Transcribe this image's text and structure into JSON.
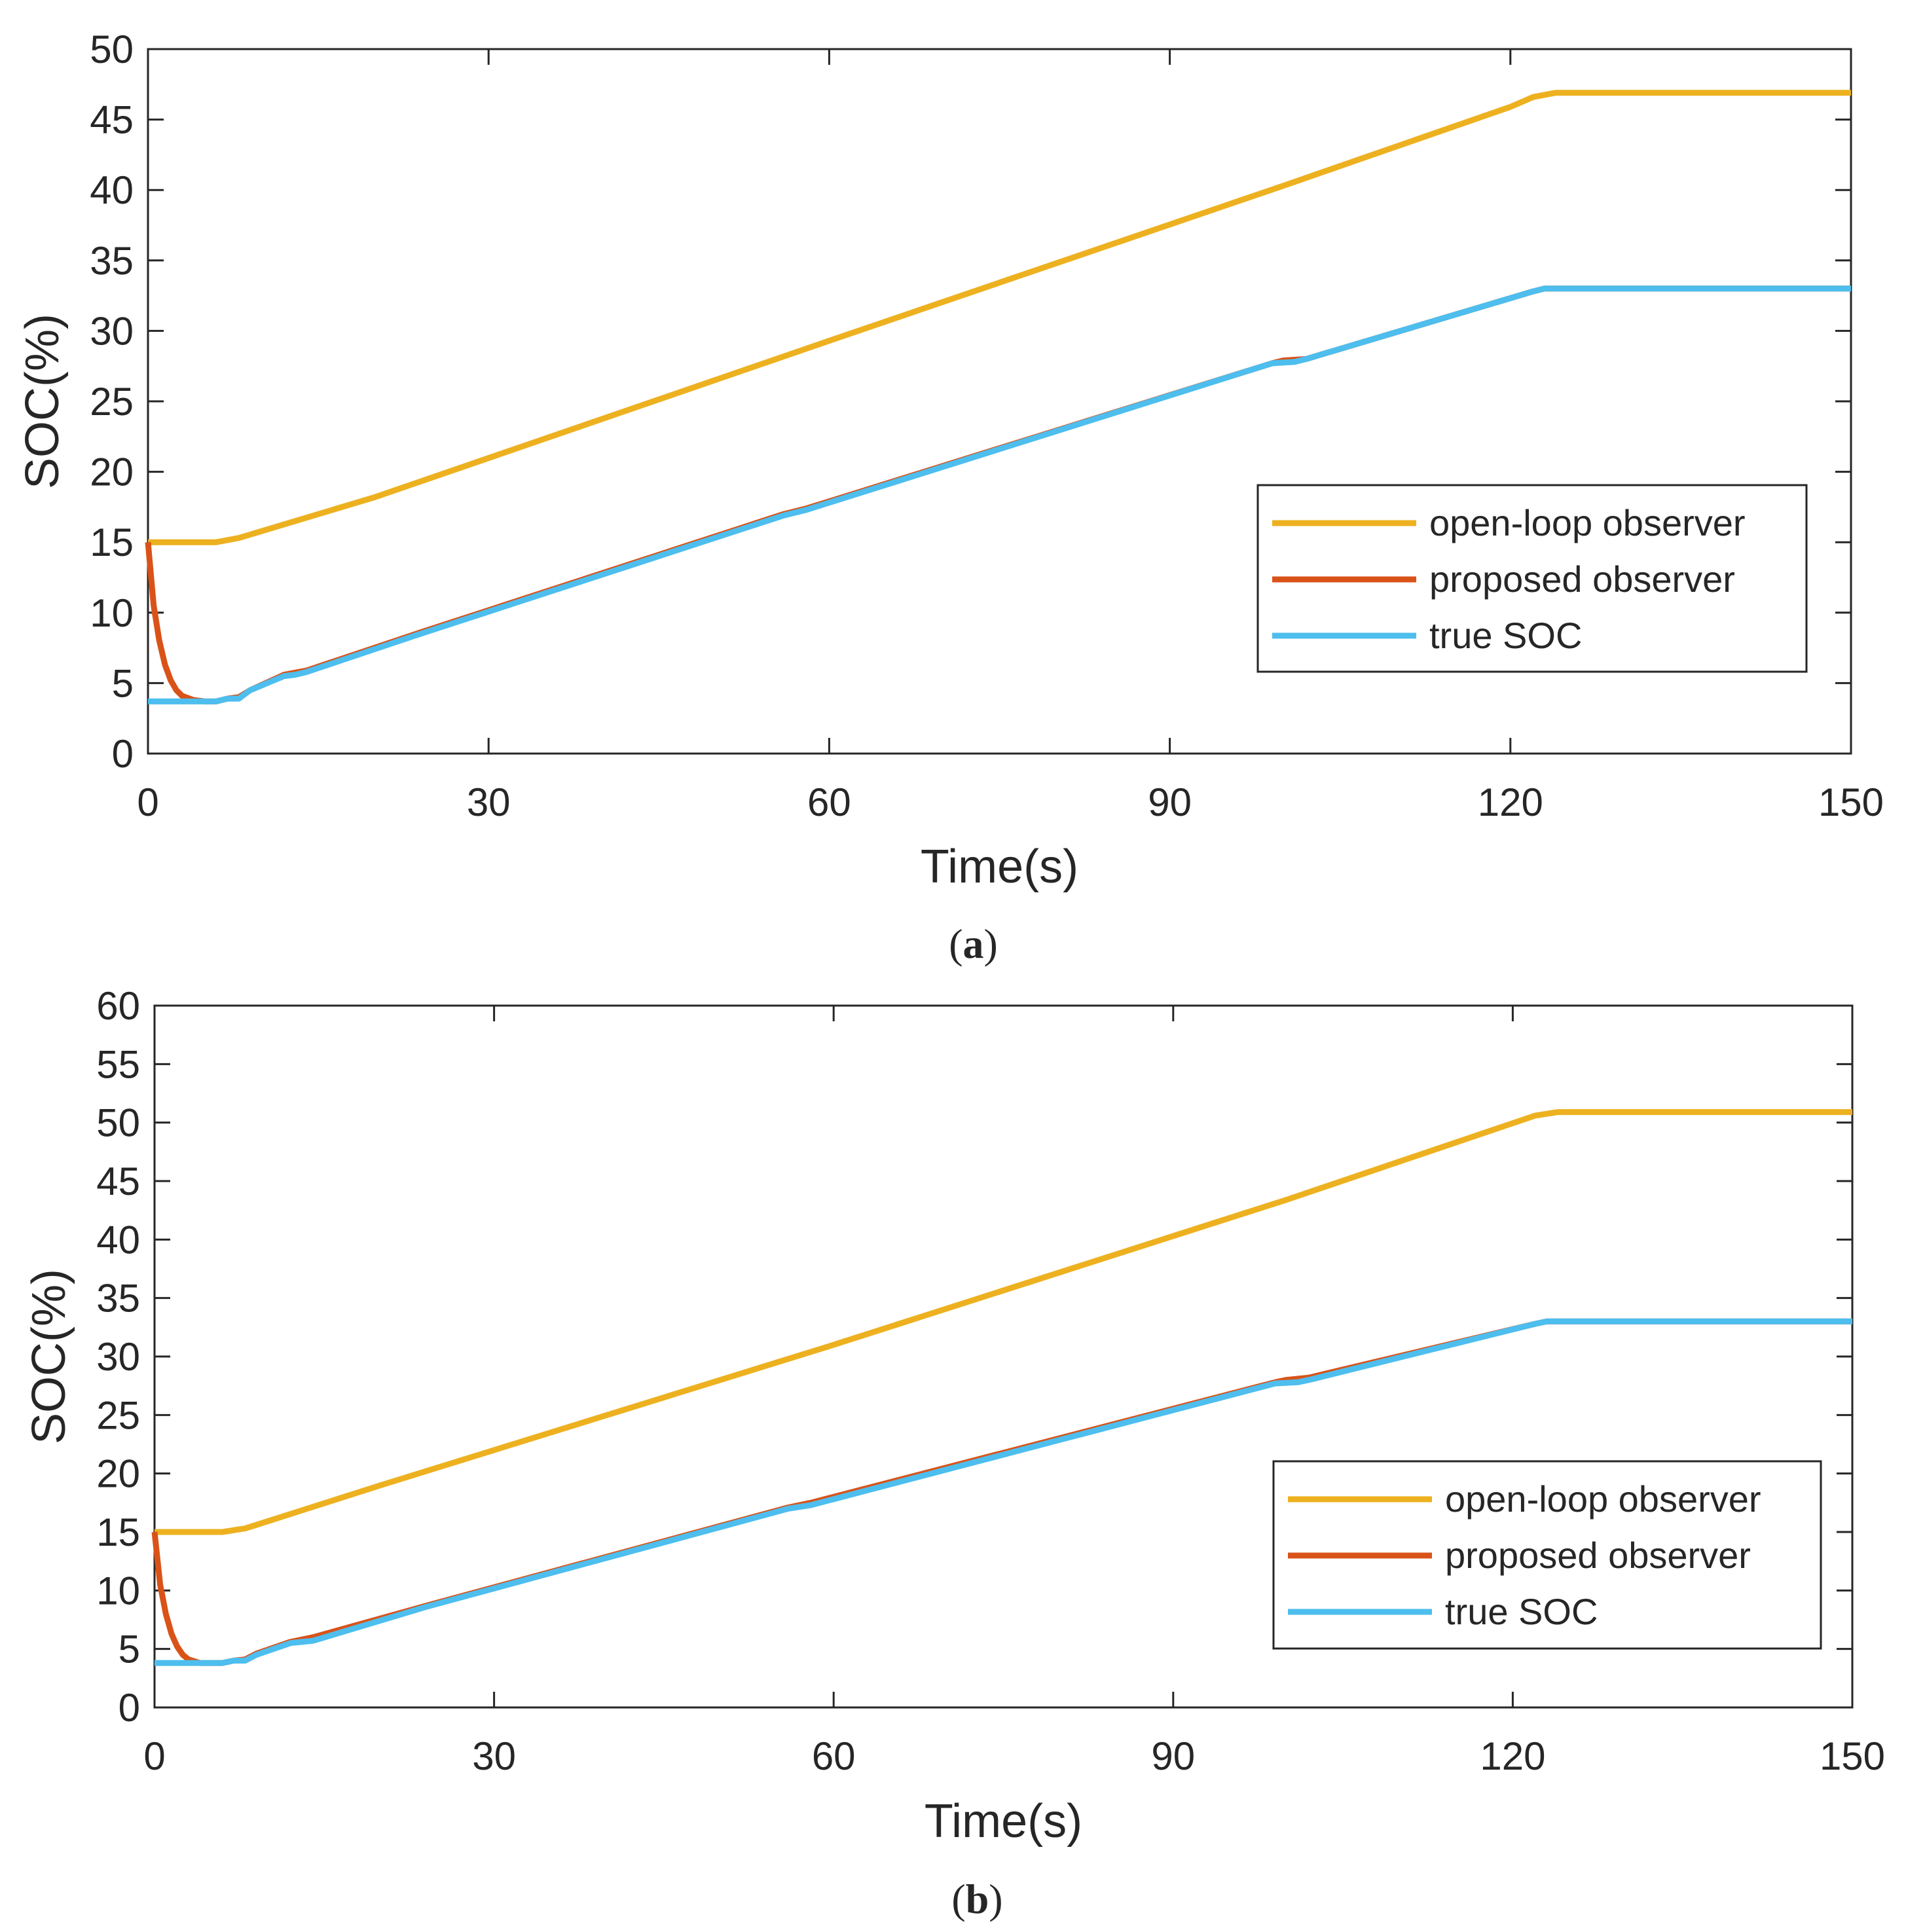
{
  "chart_data": [
    {
      "type": "line",
      "caption": {
        "open": "(",
        "letter": "a",
        "close": ")"
      },
      "xlabel": "Time(s)",
      "ylabel": "SOC(%)",
      "xlim": [
        0,
        150
      ],
      "ylim": [
        0,
        50
      ],
      "xticks": [
        "0",
        "30",
        "60",
        "90",
        "120",
        "150"
      ],
      "yticks": [
        "0",
        "5",
        "10",
        "15",
        "20",
        "25",
        "30",
        "35",
        "40",
        "45",
        "50"
      ],
      "legend_position": "center-right",
      "series": [
        {
          "name": "open-loop observer",
          "color": "#EDB120",
          "points": [
            [
              0,
              15
            ],
            [
              6,
              15
            ],
            [
              8,
              15.3
            ],
            [
              20,
              18.2
            ],
            [
              60,
              29.3
            ],
            [
              100,
              40.3
            ],
            [
              120,
              45.9
            ],
            [
              122,
              46.6
            ],
            [
              124,
              46.9
            ],
            [
              150,
              46.9
            ]
          ]
        },
        {
          "name": "proposed observer",
          "color": "#D95319",
          "points": [
            [
              0,
              15
            ],
            [
              0.5,
              10.5
            ],
            [
              1,
              8
            ],
            [
              1.5,
              6.3
            ],
            [
              2,
              5.2
            ],
            [
              2.5,
              4.5
            ],
            [
              3,
              4.1
            ],
            [
              4,
              3.8
            ],
            [
              5,
              3.7
            ],
            [
              6,
              3.7
            ],
            [
              7,
              3.9
            ],
            [
              8,
              4.0
            ],
            [
              9,
              4.5
            ],
            [
              12,
              5.6
            ],
            [
              14,
              5.9
            ],
            [
              24,
              8.6
            ],
            [
              56,
              17
            ],
            [
              58,
              17.4
            ],
            [
              99,
              27.7
            ],
            [
              100,
              27.9
            ],
            [
              102,
              28
            ],
            [
              122,
              32.8
            ],
            [
              123,
              33
            ],
            [
              150,
              33
            ]
          ]
        },
        {
          "name": "true SOC",
          "color": "#4DBEEE",
          "points": [
            [
              0,
              3.7
            ],
            [
              6,
              3.7
            ],
            [
              7,
              3.9
            ],
            [
              8,
              3.9
            ],
            [
              9,
              4.5
            ],
            [
              12,
              5.5
            ],
            [
              13,
              5.6
            ],
            [
              14,
              5.8
            ],
            [
              24,
              8.5
            ],
            [
              56,
              16.9
            ],
            [
              58,
              17.3
            ],
            [
              99,
              27.7
            ],
            [
              101,
              27.8
            ],
            [
              102,
              28
            ],
            [
              122,
              32.8
            ],
            [
              123,
              33
            ],
            [
              150,
              33
            ]
          ]
        }
      ]
    },
    {
      "type": "line",
      "caption": {
        "open": "(",
        "letter": "b",
        "close": ")"
      },
      "xlabel": "Time(s)",
      "ylabel": "SOC(%)",
      "xlim": [
        0,
        150
      ],
      "ylim": [
        0,
        60
      ],
      "xticks": [
        "0",
        "30",
        "60",
        "90",
        "120",
        "150"
      ],
      "yticks": [
        "0",
        "5",
        "10",
        "15",
        "20",
        "25",
        "30",
        "35",
        "40",
        "45",
        "50",
        "55",
        "60"
      ],
      "legend_position": "lower-right",
      "series": [
        {
          "name": "open-loop observer",
          "color": "#EDB120",
          "points": [
            [
              0,
              15
            ],
            [
              6,
              15
            ],
            [
              8,
              15.3
            ],
            [
              20,
              19
            ],
            [
              60,
              31
            ],
            [
              100,
              43.4
            ],
            [
              122,
              50.6
            ],
            [
              124,
              50.9
            ],
            [
              150,
              50.9
            ]
          ]
        },
        {
          "name": "proposed observer",
          "color": "#D95319",
          "points": [
            [
              0,
              15
            ],
            [
              0.5,
              10.5
            ],
            [
              1,
              8
            ],
            [
              1.5,
              6.3
            ],
            [
              2,
              5.2
            ],
            [
              2.5,
              4.5
            ],
            [
              3,
              4.1
            ],
            [
              4,
              3.8
            ],
            [
              5,
              3.8
            ],
            [
              6,
              3.8
            ],
            [
              7,
              4.0
            ],
            [
              8,
              4.1
            ],
            [
              9,
              4.6
            ],
            [
              12,
              5.6
            ],
            [
              14,
              6
            ],
            [
              24,
              8.7
            ],
            [
              56,
              17.1
            ],
            [
              58,
              17.5
            ],
            [
              99,
              27.8
            ],
            [
              100,
              28
            ],
            [
              102,
              28.2
            ],
            [
              122,
              32.8
            ],
            [
              123,
              33
            ],
            [
              150,
              33
            ]
          ]
        },
        {
          "name": "true SOC",
          "color": "#4DBEEE",
          "points": [
            [
              0,
              3.8
            ],
            [
              6,
              3.8
            ],
            [
              7,
              4.0
            ],
            [
              8,
              4.0
            ],
            [
              9,
              4.5
            ],
            [
              12,
              5.5
            ],
            [
              13,
              5.6
            ],
            [
              14,
              5.7
            ],
            [
              24,
              8.6
            ],
            [
              56,
              17
            ],
            [
              58,
              17.3
            ],
            [
              99,
              27.7
            ],
            [
              101,
              27.8
            ],
            [
              102,
              28
            ],
            [
              122,
              32.8
            ],
            [
              123,
              33
            ],
            [
              150,
              33
            ]
          ]
        }
      ]
    }
  ]
}
